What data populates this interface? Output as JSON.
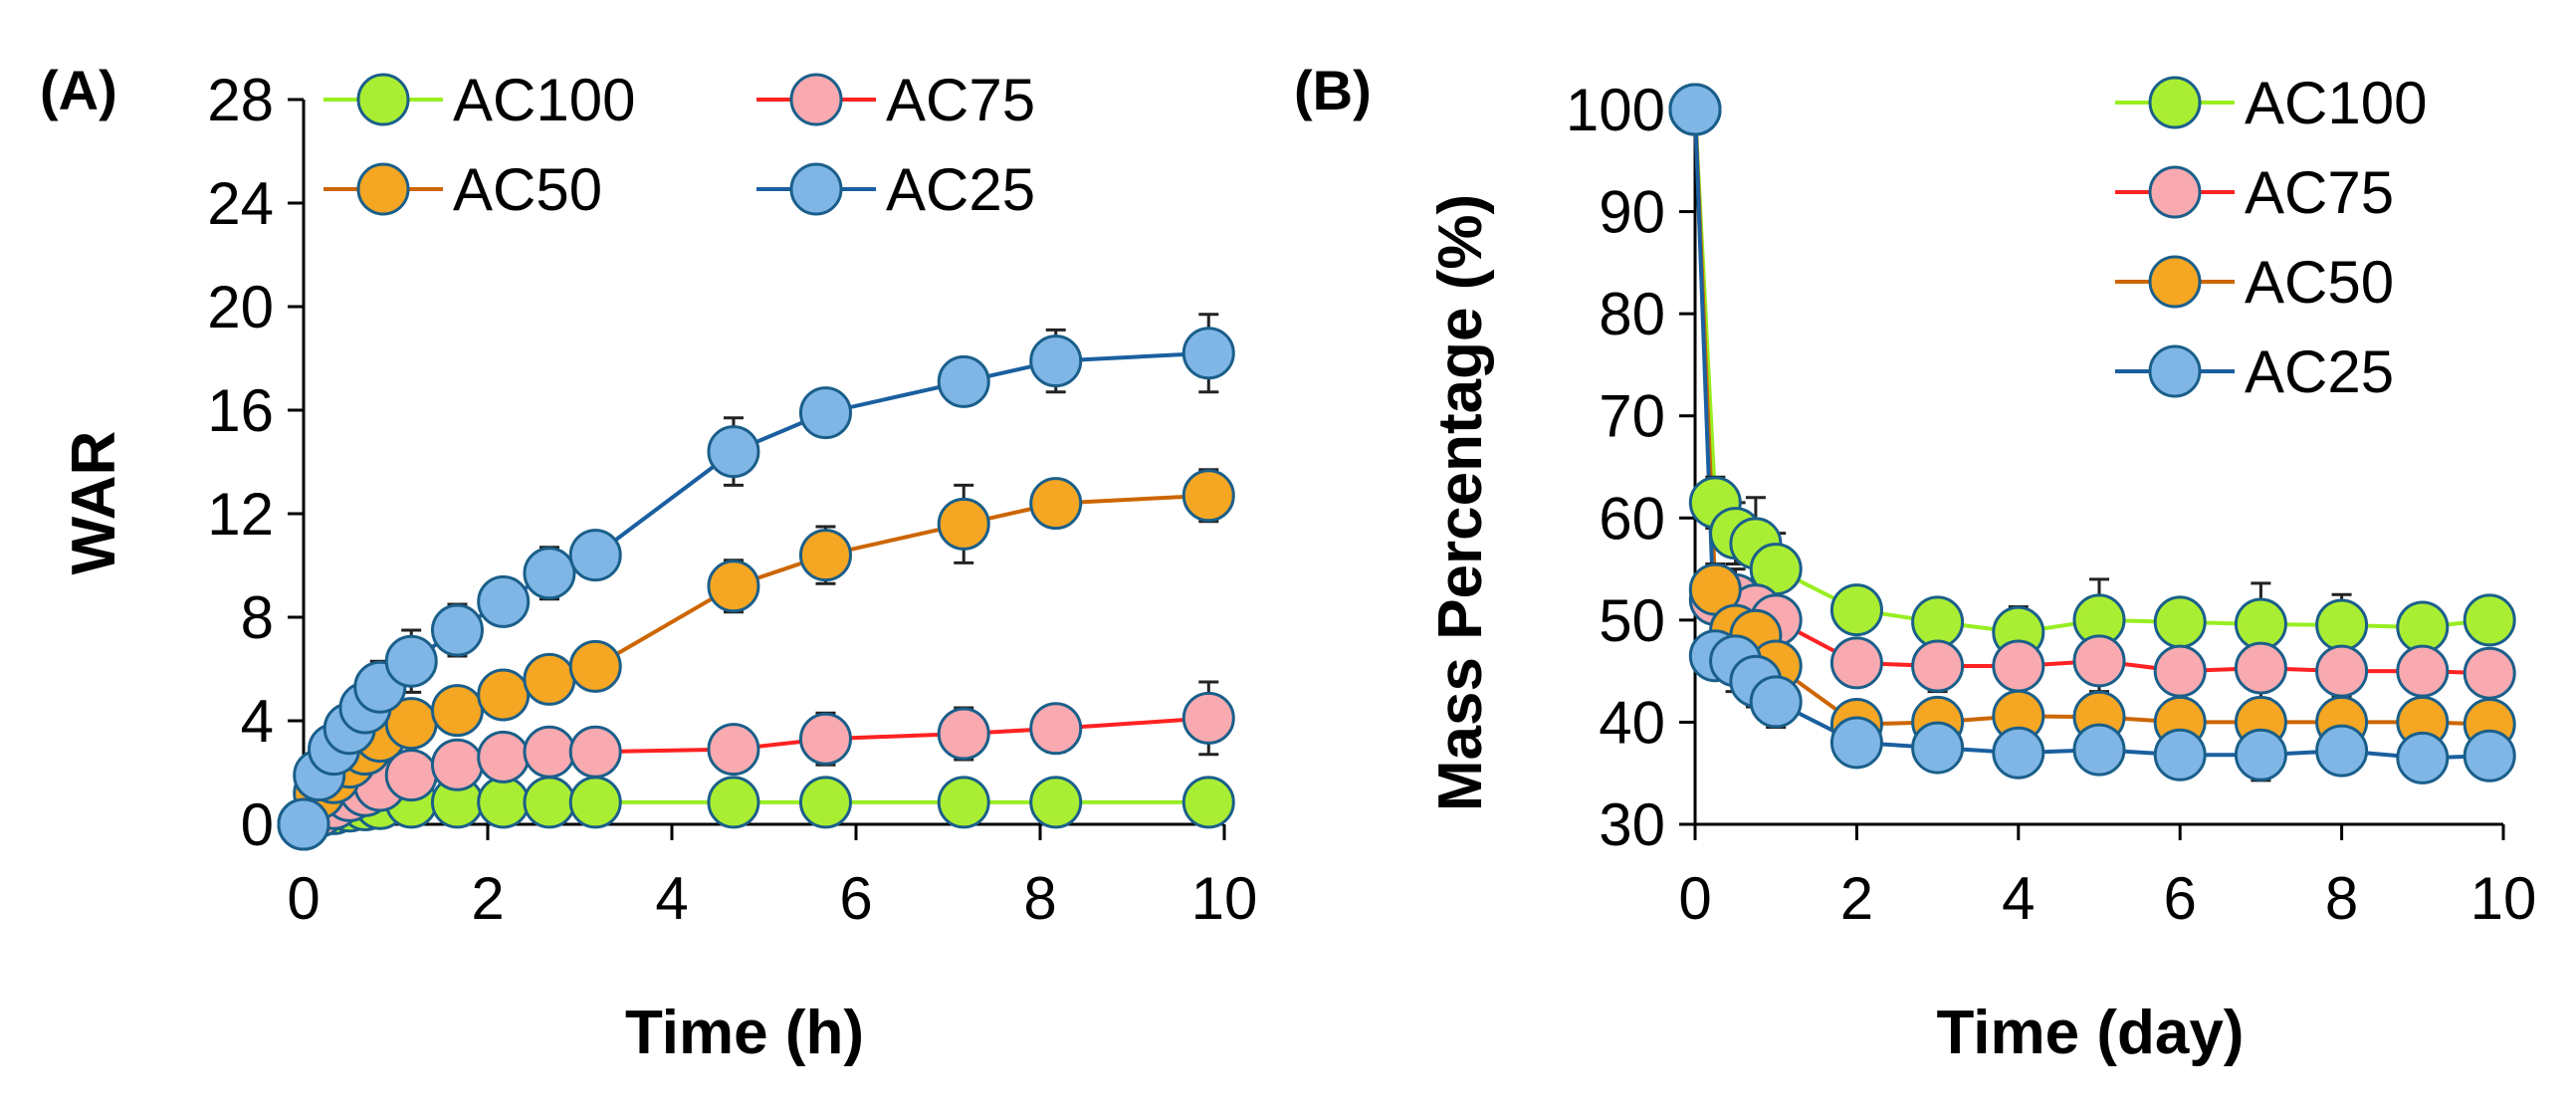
{
  "chart_data": [
    {
      "panel_label": "(A)",
      "type": "line",
      "xlabel": "Time (h)",
      "ylabel": "WAR",
      "xlim": [
        0,
        10
      ],
      "ylim": [
        0,
        28
      ],
      "xticks": [
        "0",
        "2",
        "4",
        "6",
        "8",
        "10"
      ],
      "yticks": [
        "0",
        "4",
        "8",
        "12",
        "16",
        "20",
        "24",
        "28"
      ],
      "series": [
        {
          "name": "AC100",
          "color": "#99ee22",
          "x": [
            0,
            0.17,
            0.33,
            0.5,
            0.67,
            0.83,
            1.17,
            1.67,
            2.17,
            2.67,
            3.17,
            4.67,
            5.67,
            7.17,
            8.17,
            9.83
          ],
          "y": [
            0,
            0.5,
            0.6,
            0.7,
            0.75,
            0.8,
            0.85,
            0.85,
            0.85,
            0.85,
            0.85,
            0.85,
            0.85,
            0.85,
            0.85,
            0.85
          ],
          "err": [
            0,
            0,
            0,
            0,
            0,
            0,
            0,
            0,
            0,
            0,
            0,
            0,
            0,
            0,
            0,
            0
          ]
        },
        {
          "name": "AC75",
          "color": "#ff2222",
          "x": [
            0,
            0.17,
            0.33,
            0.5,
            0.67,
            0.83,
            1.17,
            1.67,
            2.17,
            2.67,
            3.17,
            4.67,
            5.67,
            7.17,
            8.17,
            9.83
          ],
          "y": [
            0,
            0.5,
            0.8,
            1.1,
            1.3,
            1.5,
            1.9,
            2.3,
            2.6,
            2.8,
            2.8,
            2.9,
            3.3,
            3.5,
            3.7,
            4.1
          ],
          "err": [
            0,
            0.2,
            0.3,
            0.3,
            0.3,
            0.3,
            0.5,
            0.7,
            0.6,
            0.5,
            0.5,
            0.8,
            1.0,
            1.0,
            0.9,
            1.4
          ]
        },
        {
          "name": "AC50",
          "color": "#cc6600",
          "x": [
            0,
            0.17,
            0.33,
            0.5,
            0.67,
            0.83,
            1.17,
            1.67,
            2.17,
            2.67,
            3.17,
            4.67,
            5.67,
            7.17,
            8.17,
            9.83
          ],
          "y": [
            0,
            1.2,
            1.8,
            2.4,
            2.9,
            3.4,
            3.9,
            4.4,
            5.0,
            5.6,
            6.1,
            9.2,
            10.4,
            11.6,
            12.4,
            12.7
          ],
          "err": [
            0,
            0.3,
            0.4,
            0.4,
            0.5,
            0.5,
            0.6,
            0.7,
            0.8,
            0.8,
            0.9,
            1.0,
            1.1,
            1.5,
            0.9,
            1.0
          ]
        },
        {
          "name": "AC25",
          "color": "#1a5fa0",
          "x": [
            0,
            0.17,
            0.33,
            0.5,
            0.67,
            0.83,
            1.17,
            1.67,
            2.17,
            2.67,
            3.17,
            4.67,
            5.67,
            7.17,
            8.17,
            9.83
          ],
          "y": [
            0,
            1.9,
            2.9,
            3.7,
            4.5,
            5.3,
            6.3,
            7.5,
            8.6,
            9.7,
            10.4,
            14.4,
            15.9,
            17.1,
            17.9,
            18.2
          ],
          "err": [
            0,
            0.3,
            0.5,
            0.7,
            0.9,
            1.0,
            1.2,
            1.0,
            0.5,
            1.0,
            0.7,
            1.3,
            0.8,
            0.5,
            1.2,
            1.5
          ]
        }
      ],
      "legend": [
        "AC100",
        "AC75",
        "AC50",
        "AC25"
      ]
    },
    {
      "panel_label": "(B)",
      "type": "line",
      "xlabel": "Time (day)",
      "ylabel": "Mass Percentage (%)",
      "xlim": [
        0,
        10
      ],
      "ylim": [
        30,
        100
      ],
      "xticks": [
        "0",
        "2",
        "4",
        "6",
        "8",
        "10"
      ],
      "yticks": [
        "30",
        "40",
        "50",
        "60",
        "70",
        "80",
        "90",
        "100"
      ],
      "series": [
        {
          "name": "AC100",
          "color": "#99ee22",
          "x": [
            0,
            0.25,
            0.5,
            0.75,
            1,
            2,
            3,
            4,
            5,
            6,
            7,
            8,
            9,
            9.83
          ],
          "y": [
            100,
            61.5,
            58.5,
            57.5,
            55.0,
            51.0,
            49.8,
            48.8,
            50.0,
            49.8,
            49.6,
            49.5,
            49.3,
            50.0
          ],
          "err": [
            0,
            2.5,
            3.0,
            4.5,
            3.5,
            1.5,
            1.5,
            2.5,
            4.0,
            2.0,
            4.0,
            3.0,
            1.5,
            1.5
          ]
        },
        {
          "name": "AC75",
          "color": "#ff2222",
          "x": [
            0,
            0.25,
            0.5,
            0.75,
            1,
            2,
            3,
            4,
            5,
            6,
            7,
            8,
            9,
            9.83
          ],
          "y": [
            100,
            52.0,
            52.0,
            51.0,
            50.0,
            45.8,
            45.5,
            45.5,
            46.0,
            45.0,
            45.3,
            45.0,
            45.0,
            44.8
          ],
          "err": [
            0,
            2.0,
            3.0,
            3.0,
            3.0,
            2.0,
            2.5,
            3.0,
            3.5,
            3.0,
            3.0,
            2.5,
            2.0,
            2.0
          ]
        },
        {
          "name": "AC50",
          "color": "#cc6600",
          "x": [
            0,
            0.25,
            0.5,
            0.75,
            1,
            2,
            3,
            4,
            5,
            6,
            7,
            8,
            9,
            9.83
          ],
          "y": [
            100,
            53.0,
            49.0,
            48.5,
            45.5,
            39.8,
            40.0,
            40.6,
            40.5,
            40.0,
            40.0,
            40.0,
            40.0,
            39.8
          ],
          "err": [
            0,
            2.5,
            2.5,
            2.5,
            2.5,
            2.0,
            2.0,
            2.0,
            2.5,
            2.0,
            2.0,
            2.0,
            2.0,
            2.0
          ]
        },
        {
          "name": "AC25",
          "color": "#1a5fa0",
          "x": [
            0,
            0.25,
            0.5,
            0.75,
            1,
            2,
            3,
            4,
            5,
            6,
            7,
            8,
            9,
            9.83
          ],
          "y": [
            100,
            46.5,
            46.0,
            44.0,
            42.0,
            38.0,
            37.5,
            37.0,
            37.3,
            36.8,
            36.8,
            37.2,
            36.5,
            36.7
          ],
          "err": [
            0,
            1.5,
            3.0,
            2.5,
            2.5,
            1.5,
            1.5,
            1.5,
            2.0,
            2.0,
            2.5,
            1.5,
            1.5,
            1.0
          ]
        }
      ],
      "legend": [
        "AC100",
        "AC75",
        "AC50",
        "AC25"
      ]
    }
  ],
  "marker_fills": {
    "AC100": "#aaee33",
    "AC75": "#f8aab0",
    "AC50": "#f5a623",
    "AC25": "#7fb6e6"
  },
  "marker_stroke": "#1a5f8a"
}
